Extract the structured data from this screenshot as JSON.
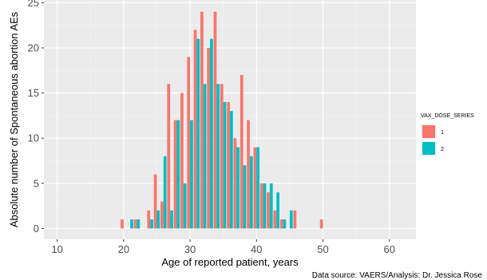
{
  "chart_data": {
    "type": "bar",
    "xlabel": "Age of reported patient, years",
    "ylabel": "Absolute number of Spontaneous abortion AEs",
    "xlim": [
      8,
      64
    ],
    "ylim": [
      -1.2,
      25.3
    ],
    "xticks": [
      10,
      20,
      30,
      40,
      50,
      60
    ],
    "yticks": [
      0,
      5,
      10,
      15,
      20,
      25
    ],
    "grid": true,
    "legend_title": "VAX_DOSE_SERIES",
    "legend_position": "right",
    "series": [
      {
        "name": "1",
        "color": "#F8766D",
        "points": [
          [
            20,
            1
          ],
          [
            22,
            1
          ],
          [
            24,
            2
          ],
          [
            25,
            6
          ],
          [
            26,
            3
          ],
          [
            27,
            16
          ],
          [
            28,
            12
          ],
          [
            29,
            15
          ],
          [
            30,
            19
          ],
          [
            31,
            22
          ],
          [
            32,
            24
          ],
          [
            33,
            20
          ],
          [
            34,
            24
          ],
          [
            35,
            16
          ],
          [
            36,
            14
          ],
          [
            37,
            10
          ],
          [
            38,
            17
          ],
          [
            39,
            12
          ],
          [
            40,
            9
          ],
          [
            41,
            5
          ],
          [
            42,
            4
          ],
          [
            43,
            2
          ],
          [
            44,
            1
          ],
          [
            46,
            2
          ],
          [
            50,
            1
          ]
        ]
      },
      {
        "name": "2",
        "color": "#00BFC4",
        "points": [
          [
            21,
            1
          ],
          [
            22,
            1
          ],
          [
            24,
            1
          ],
          [
            25,
            2
          ],
          [
            26,
            8
          ],
          [
            27,
            2
          ],
          [
            28,
            12
          ],
          [
            29,
            5
          ],
          [
            30,
            12
          ],
          [
            31,
            21
          ],
          [
            32,
            16
          ],
          [
            33,
            21
          ],
          [
            34,
            16
          ],
          [
            35,
            14
          ],
          [
            36,
            13
          ],
          [
            37,
            9
          ],
          [
            38,
            7
          ],
          [
            39,
            8
          ],
          [
            40,
            9
          ],
          [
            41,
            5
          ],
          [
            42,
            5
          ],
          [
            43,
            4
          ],
          [
            44,
            1
          ],
          [
            45,
            2
          ]
        ]
      }
    ]
  },
  "caption": "Data source: VAERS/Analysis: Dr. Jessica Rose"
}
